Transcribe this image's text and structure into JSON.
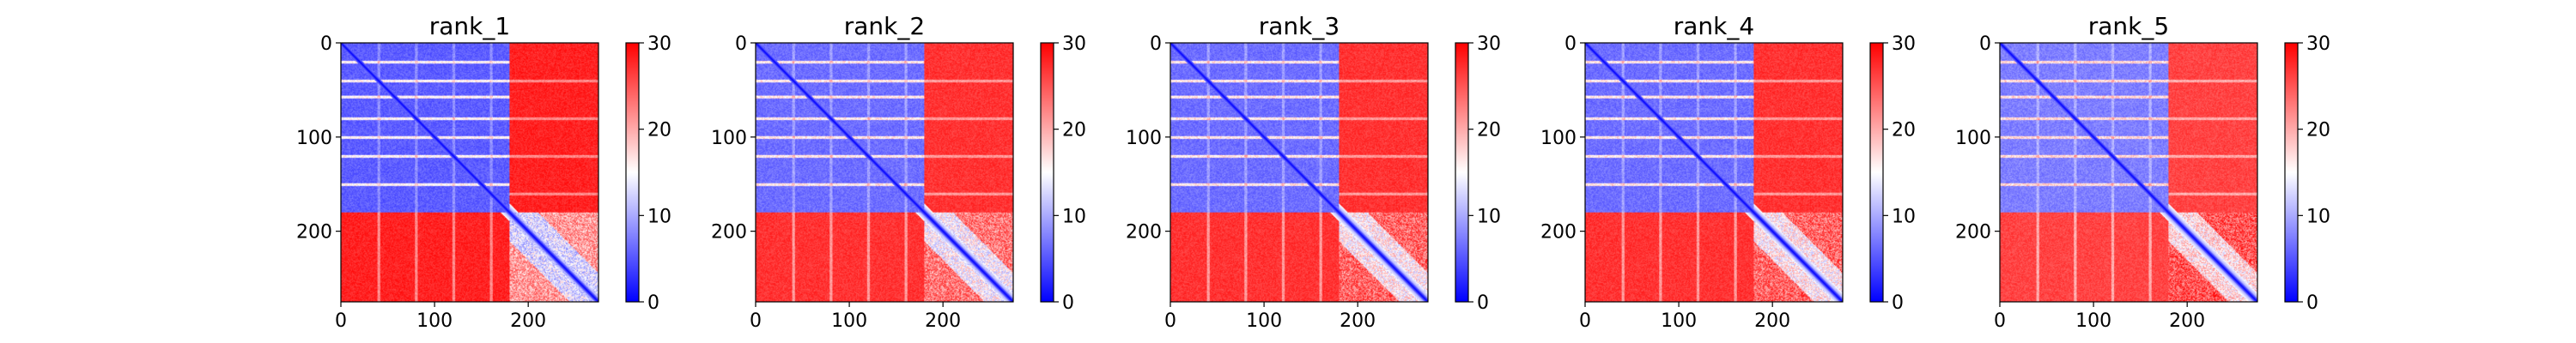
{
  "chart_data": [
    {
      "type": "heatmap",
      "title": "rank_1",
      "xlabel": "",
      "ylabel": "",
      "x_ticks": [
        0,
        100,
        200
      ],
      "y_ticks": [
        0,
        100,
        200
      ],
      "xlim": [
        0,
        275
      ],
      "ylim": [
        275,
        0
      ],
      "n_residues": 275,
      "domain_boundary": 180,
      "colorbar": {
        "min": 0,
        "max": 30,
        "ticks": [
          0,
          10,
          20,
          30
        ],
        "colormap": "bwr"
      },
      "values": {
        "within_domain_A": 4,
        "within_domain_B": 12,
        "between_domains": 28,
        "diagonal": 0,
        "artifact_rows": [
          20,
          40,
          57,
          80,
          100,
          120,
          150
        ],
        "artifact_cols": [
          40,
          80,
          120,
          160
        ]
      }
    },
    {
      "type": "heatmap",
      "title": "rank_2",
      "xlabel": "",
      "ylabel": "",
      "x_ticks": [
        0,
        100,
        200
      ],
      "y_ticks": [
        0,
        100,
        200
      ],
      "xlim": [
        0,
        275
      ],
      "ylim": [
        275,
        0
      ],
      "n_residues": 275,
      "domain_boundary": 180,
      "colorbar": {
        "min": 0,
        "max": 30,
        "ticks": [
          0,
          10,
          20,
          30
        ],
        "colormap": "bwr"
      },
      "values": {
        "within_domain_A": 5,
        "within_domain_B": 14,
        "between_domains": 27,
        "diagonal": 0,
        "artifact_rows": [
          20,
          40,
          57,
          80,
          100,
          120,
          150
        ],
        "artifact_cols": [
          40,
          80,
          120,
          160
        ]
      }
    },
    {
      "type": "heatmap",
      "title": "rank_3",
      "xlabel": "",
      "ylabel": "",
      "x_ticks": [
        0,
        100,
        200
      ],
      "y_ticks": [
        0,
        100,
        200
      ],
      "xlim": [
        0,
        275
      ],
      "ylim": [
        275,
        0
      ],
      "n_residues": 275,
      "domain_boundary": 180,
      "colorbar": {
        "min": 0,
        "max": 30,
        "ticks": [
          0,
          10,
          20,
          30
        ],
        "colormap": "bwr"
      },
      "values": {
        "within_domain_A": 5,
        "within_domain_B": 15,
        "between_domains": 27,
        "diagonal": 0,
        "artifact_rows": [
          20,
          40,
          57,
          80,
          100,
          120,
          150
        ],
        "artifact_cols": [
          40,
          80,
          120,
          160
        ]
      }
    },
    {
      "type": "heatmap",
      "title": "rank_4",
      "xlabel": "",
      "ylabel": "",
      "x_ticks": [
        0,
        100,
        200
      ],
      "y_ticks": [
        0,
        100,
        200
      ],
      "xlim": [
        0,
        275
      ],
      "ylim": [
        275,
        0
      ],
      "n_residues": 275,
      "domain_boundary": 180,
      "colorbar": {
        "min": 0,
        "max": 30,
        "ticks": [
          0,
          10,
          20,
          30
        ],
        "colormap": "bwr"
      },
      "values": {
        "within_domain_A": 5,
        "within_domain_B": 15,
        "between_domains": 27,
        "diagonal": 0,
        "artifact_rows": [
          20,
          40,
          57,
          80,
          100,
          120,
          150
        ],
        "artifact_cols": [
          40,
          80,
          120,
          160
        ]
      }
    },
    {
      "type": "heatmap",
      "title": "rank_5",
      "xlabel": "",
      "ylabel": "",
      "x_ticks": [
        0,
        100,
        200
      ],
      "y_ticks": [
        0,
        100,
        200
      ],
      "xlim": [
        0,
        275
      ],
      "ylim": [
        275,
        0
      ],
      "n_residues": 275,
      "domain_boundary": 180,
      "colorbar": {
        "min": 0,
        "max": 30,
        "ticks": [
          0,
          10,
          20,
          30
        ],
        "colormap": "bwr"
      },
      "values": {
        "within_domain_A": 6,
        "within_domain_B": 16,
        "between_domains": 26,
        "diagonal": 0,
        "artifact_rows": [
          20,
          40,
          57,
          80,
          100,
          120,
          150
        ],
        "artifact_cols": [
          40,
          80,
          120,
          160
        ]
      }
    }
  ]
}
